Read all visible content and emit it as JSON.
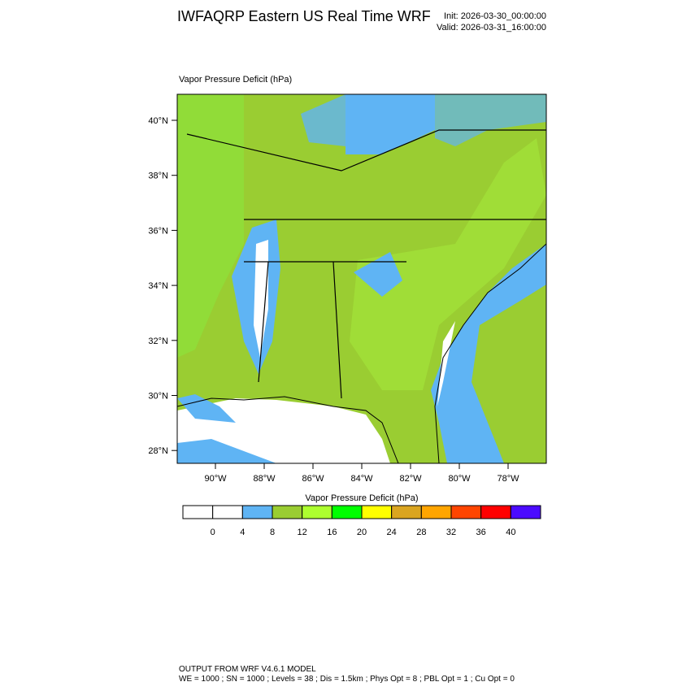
{
  "header": {
    "title": "IWFAQRP Eastern US Real Time WRF",
    "init": "Init: 2026-03-30_00:00:00",
    "valid": "Valid: 2026-03-31_16:00:00"
  },
  "map": {
    "label": "Vapor Pressure Deficit   (hPa)",
    "lat_ticks": [
      "40°N",
      "38°N",
      "36°N",
      "34°N",
      "32°N",
      "30°N",
      "28°N"
    ],
    "lon_ticks": [
      "90°W",
      "88°W",
      "86°W",
      "84°W",
      "82°W",
      "80°W",
      "78°W"
    ]
  },
  "colorbar": {
    "title": "Vapor Pressure Deficit  (hPa)",
    "colors": [
      "#ffffff",
      "#ffffff",
      "#5fb4f4",
      "#9acd32",
      "#adff2f",
      "#00ff00",
      "#ffff00",
      "#daa520",
      "#ffa500",
      "#ff4500",
      "#ff0000",
      "#4b0bff"
    ],
    "labels": [
      "0",
      "4",
      "8",
      "12",
      "16",
      "20",
      "24",
      "28",
      "32",
      "36",
      "40"
    ]
  },
  "footer": {
    "line1": "OUTPUT FROM WRF V4.6.1 MODEL",
    "line2": "WE = 1000 ; SN = 1000 ; Levels = 38 ; Dis = 1.5km ; Phys Opt = 8 ; PBL Opt = 1 ; Cu Opt = 0"
  }
}
